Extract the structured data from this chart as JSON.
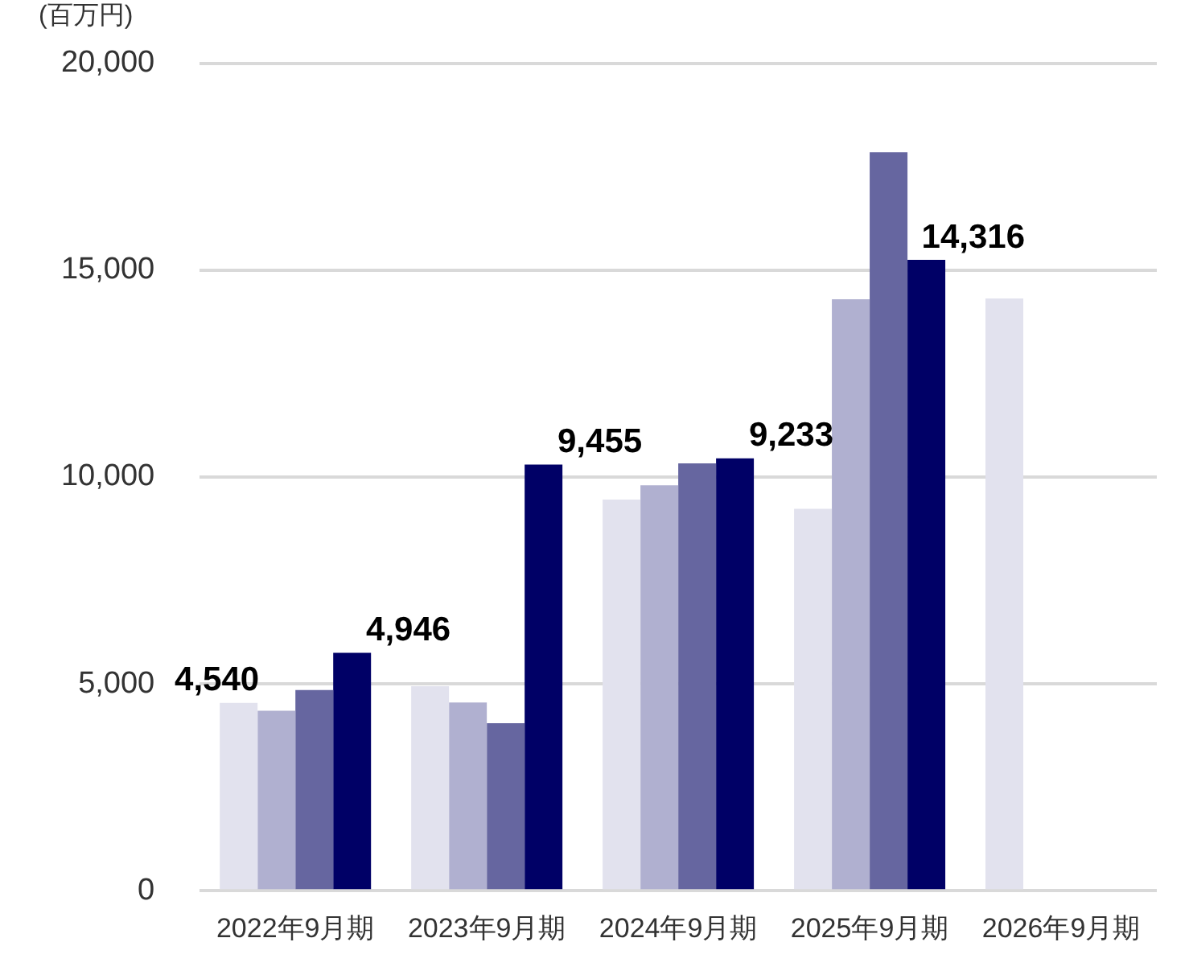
{
  "chart_data": {
    "type": "bar",
    "ylabel": "(百万円)",
    "categories": [
      "2022年9月期",
      "2023年9月期",
      "2024年9月期",
      "2025年9月期",
      "2026年9月期"
    ],
    "series": [
      {
        "color": "#e2e2ee",
        "values": [
          4540,
          4946,
          9455,
          9233,
          14316
        ],
        "value_labels": [
          "4,540",
          "4,946",
          "9,455",
          "9,233",
          "14,316"
        ]
      },
      {
        "color": "#b0b0d0",
        "values": [
          4350,
          4550,
          9800,
          14300,
          null
        ]
      },
      {
        "color": "#6666a0",
        "values": [
          4850,
          4050,
          10330,
          17850,
          null
        ]
      },
      {
        "color": "#000066",
        "values": [
          5750,
          10300,
          10450,
          15250,
          null
        ]
      }
    ],
    "ylim": [
      0,
      20000
    ],
    "yticks": [
      {
        "value": 0,
        "label": "0"
      },
      {
        "value": 5000,
        "label": "5,000"
      },
      {
        "value": 10000,
        "label": "10,000"
      },
      {
        "value": 15000,
        "label": "15,000"
      },
      {
        "value": 20000,
        "label": "20,000"
      }
    ],
    "grid": "y",
    "legend": false
  }
}
